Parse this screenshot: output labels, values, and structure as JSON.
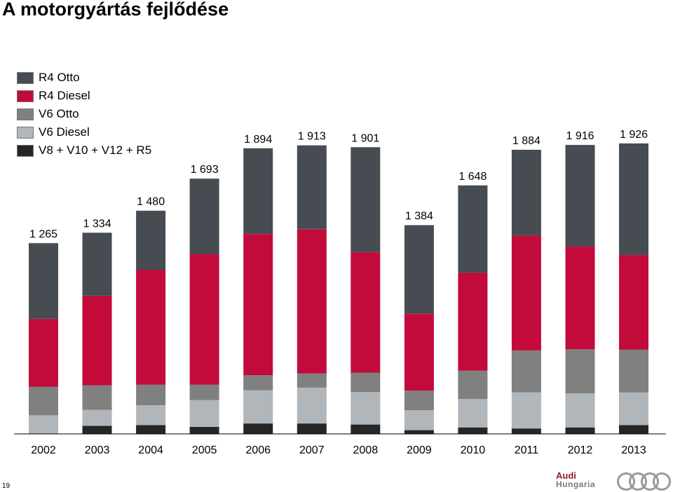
{
  "title": "A motorgyártás fejlődése",
  "page_number": "19",
  "brand": {
    "audi": "Audi",
    "hungaria": "Hungaria",
    "logo_icon": "audi-rings-icon"
  },
  "legend": [
    {
      "name": "R4 Otto",
      "color": "#474c53"
    },
    {
      "name": "R4 Diesel",
      "color": "#c20b3a"
    },
    {
      "name": "V6 Otto",
      "color": "#808080"
    },
    {
      "name": "V6 Diesel",
      "color": "#b1b6ba"
    },
    {
      "name": "V8 + V10 + V12 + R5",
      "color": "#262626"
    }
  ],
  "chart_data": {
    "type": "bar",
    "stacked": true,
    "categories": [
      "2002",
      "2003",
      "2004",
      "2005",
      "2006",
      "2007",
      "2008",
      "2009",
      "2010",
      "2011",
      "2012",
      "2013"
    ],
    "totals": [
      1265,
      1334,
      1480,
      1693,
      1894,
      1913,
      1901,
      1384,
      1648,
      1884,
      1916,
      1926
    ],
    "total_labels": [
      "1 265",
      "1 334",
      "1 480",
      "1 693",
      "1 894",
      "1 913",
      "1 901",
      "1 384",
      "1 648",
      "1 884",
      "1 916",
      "1 926"
    ],
    "series": [
      {
        "name": "V8 + V10 + V12 + R5",
        "color": "#262626",
        "values": [
          0,
          54,
          59,
          47,
          69,
          69,
          62,
          25,
          43,
          36,
          43,
          59
        ]
      },
      {
        "name": "V6 Diesel",
        "color": "#b1b6ba",
        "values": [
          123,
          105,
          131,
          177,
          221,
          238,
          215,
          132,
          188,
          240,
          225,
          215
        ]
      },
      {
        "name": "V6 Otto",
        "color": "#808080",
        "values": [
          190,
          163,
          137,
          103,
          100,
          94,
          129,
          129,
          188,
          277,
          293,
          285
        ]
      },
      {
        "name": "R4 Diesel",
        "color": "#c20b3a",
        "values": [
          449,
          593,
          761,
          865,
          935,
          955,
          799,
          511,
          650,
          762,
          682,
          627
        ]
      },
      {
        "name": "R4 Otto",
        "color": "#474c53",
        "values": [
          503,
          419,
          392,
          501,
          569,
          557,
          696,
          587,
          579,
          569,
          673,
          740
        ]
      }
    ],
    "legend_position": "top-left",
    "grid": false
  }
}
